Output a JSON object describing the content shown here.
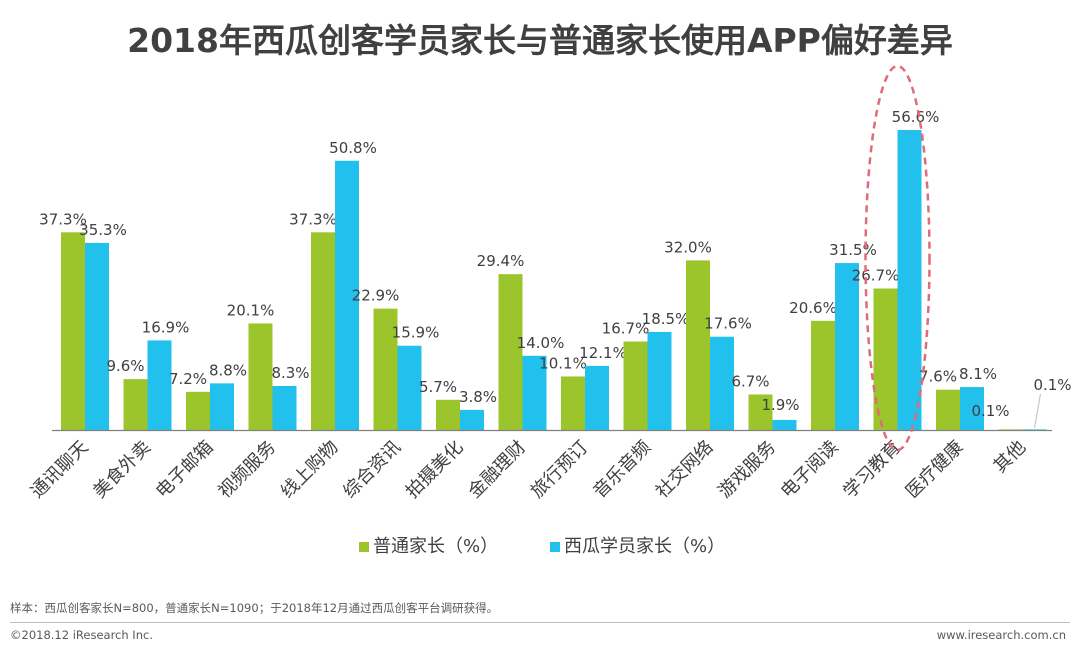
{
  "colors": {
    "series1": "#9bc52b",
    "series2": "#22c0ec",
    "highlight": "#e06b7c",
    "label": "#404040"
  },
  "footer": {
    "note": "样本：西瓜创客家长N=800，普通家长N=1090；于2018年12月通过西瓜创客平台调研获得。",
    "copyright": "©2018.12 iResearch Inc.",
    "website": "www.iresearch.com.cn"
  },
  "chart_data": {
    "type": "bar",
    "title": "2018年西瓜创客学员家长与普通家长使用APP偏好差异",
    "xlabel": "",
    "ylabel": "",
    "ylim": [
      0,
      60
    ],
    "grid": false,
    "legend": "bottom",
    "categories": [
      "通讯聊天",
      "美食外卖",
      "电子邮箱",
      "视频服务",
      "线上购物",
      "综合资讯",
      "拍摄美化",
      "金融理财",
      "旅行预订",
      "音乐音频",
      "社交网络",
      "游戏服务",
      "电子阅读",
      "学习教育",
      "医疗健康",
      "其他"
    ],
    "series": [
      {
        "name": "普通家长（%）",
        "values": [
          37.3,
          9.6,
          7.2,
          20.1,
          37.3,
          22.9,
          5.7,
          29.4,
          10.1,
          16.7,
          32.0,
          6.7,
          20.6,
          26.7,
          7.6,
          0.1
        ]
      },
      {
        "name": "西瓜学员家长（%）",
        "values": [
          35.3,
          16.9,
          8.8,
          8.3,
          50.8,
          15.9,
          3.8,
          14.0,
          12.1,
          18.5,
          17.6,
          1.9,
          31.5,
          56.6,
          8.1,
          0.1
        ]
      }
    ],
    "data_labels": [
      [
        "37.3%",
        "9.6%",
        "7.2%",
        "20.1%",
        "37.3%",
        "22.9%",
        "5.7%",
        "29.4%",
        "10.1%",
        "16.7%",
        "32.0%",
        "6.7%",
        "20.6%",
        "26.7%",
        "7.6%",
        "0.1%"
      ],
      [
        "35.3%",
        "16.9%",
        "8.8%",
        "8.3%",
        "50.8%",
        "15.9%",
        "3.8%",
        "14.0%",
        "12.1%",
        "18.5%",
        "17.6%",
        "1.9%",
        "31.5%",
        "56.6%",
        "8.1%",
        "0.1%"
      ]
    ],
    "highlighted_category": "学习教育"
  }
}
